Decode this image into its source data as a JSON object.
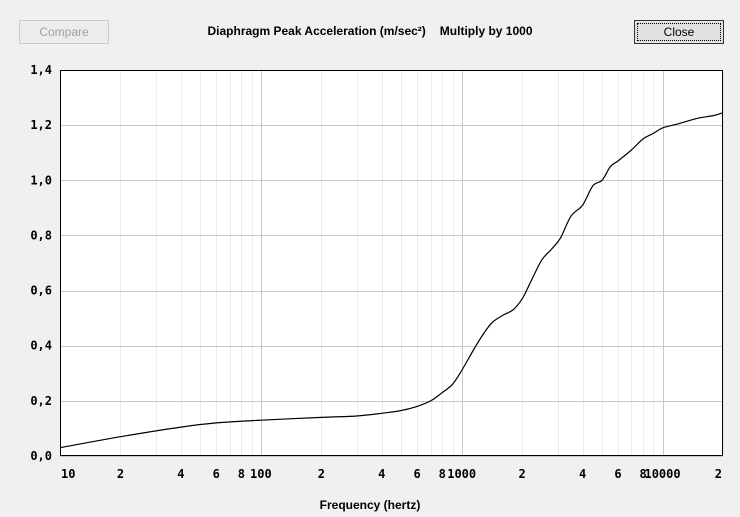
{
  "toolbar": {
    "compare_label": "Compare",
    "close_label": "Close"
  },
  "chart_data": {
    "type": "line",
    "title": "Diaphragm Peak Acceleration (m/sec²)",
    "subtitle": "Multiply by 1000",
    "xlabel": "Frequency (hertz)",
    "ylabel": "",
    "xscale": "log",
    "xlim": [
      10,
      20000
    ],
    "ylim": [
      0,
      1.4
    ],
    "grid": true,
    "y_ticks": [
      "0,0",
      "0,2",
      "0,4",
      "0,6",
      "0,8",
      "1,0",
      "1,2",
      "1,4"
    ],
    "y_tick_values": [
      0,
      0.2,
      0.4,
      0.6,
      0.8,
      1.0,
      1.2,
      1.4
    ],
    "x_ticks": [
      {
        "value": 10,
        "label": "10"
      },
      {
        "value": 20,
        "label": "2"
      },
      {
        "value": 40,
        "label": "4"
      },
      {
        "value": 60,
        "label": "6"
      },
      {
        "value": 80,
        "label": "8"
      },
      {
        "value": 100,
        "label": "100"
      },
      {
        "value": 200,
        "label": "2"
      },
      {
        "value": 400,
        "label": "4"
      },
      {
        "value": 600,
        "label": "6"
      },
      {
        "value": 800,
        "label": "8"
      },
      {
        "value": 1000,
        "label": "1000"
      },
      {
        "value": 2000,
        "label": "2"
      },
      {
        "value": 4000,
        "label": "4"
      },
      {
        "value": 6000,
        "label": "6"
      },
      {
        "value": 8000,
        "label": "8"
      },
      {
        "value": 10000,
        "label": "10000"
      },
      {
        "value": 20000,
        "label": "2"
      }
    ],
    "series": [
      {
        "color": "#000000",
        "x": [
          10,
          20,
          40,
          60,
          100,
          200,
          300,
          400,
          500,
          600,
          700,
          800,
          900,
          1000,
          1200,
          1400,
          1600,
          1800,
          2000,
          2200,
          2500,
          2800,
          3100,
          3500,
          4000,
          4500,
          5000,
          5500,
          6000,
          7000,
          8000,
          9000,
          10000,
          12000,
          15000,
          18000,
          20000
        ],
        "y": [
          0.03,
          0.07,
          0.105,
          0.12,
          0.13,
          0.14,
          0.145,
          0.155,
          0.165,
          0.18,
          0.2,
          0.23,
          0.26,
          0.31,
          0.41,
          0.48,
          0.51,
          0.53,
          0.57,
          0.63,
          0.71,
          0.75,
          0.79,
          0.87,
          0.91,
          0.98,
          1.0,
          1.05,
          1.07,
          1.11,
          1.15,
          1.17,
          1.19,
          1.205,
          1.225,
          1.235,
          1.245
        ]
      }
    ]
  }
}
